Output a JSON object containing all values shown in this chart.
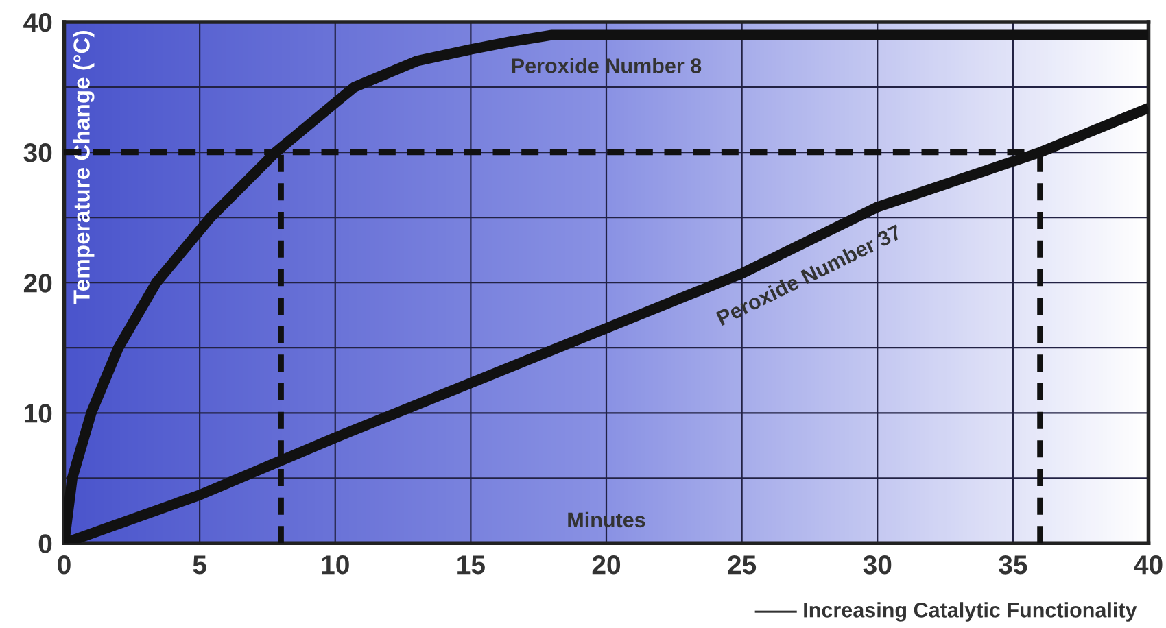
{
  "chart_data": {
    "type": "line",
    "xlabel": "Minutes",
    "ylabel": "Temperature Change (°C)",
    "annotations": [
      "—— Increasing Catalytic Functionality"
    ],
    "series": [
      {
        "name": "Peroxide Number 8",
        "color": "#111111",
        "x": [
          0,
          0.3,
          1,
          2,
          3.4,
          5.4,
          7.8,
          10.7,
          13,
          15,
          16.5,
          18,
          20,
          25,
          30,
          35,
          40
        ],
        "values": [
          0,
          5,
          10,
          15,
          20,
          25,
          30,
          35,
          37,
          37.9,
          38.5,
          39,
          39,
          39,
          39,
          39,
          39
        ]
      },
      {
        "name": "Peroxide Number 37",
        "color": "#111111",
        "x": [
          0,
          5,
          10,
          15,
          20,
          25,
          30,
          36,
          40
        ],
        "values": [
          0,
          3.7,
          8.1,
          12.3,
          16.5,
          20.7,
          25.8,
          30,
          33.4
        ]
      }
    ],
    "ref_lines": [
      {
        "axis": "y",
        "value": 30,
        "label": null,
        "color": "#111111",
        "line_style": "dashed"
      },
      {
        "axis": "x",
        "value": 8,
        "label": null,
        "color": "#111111",
        "line_style": "dashed"
      },
      {
        "axis": "x",
        "value": 36,
        "label": null,
        "color": "#111111",
        "line_style": "dashed"
      }
    ],
    "xlim": [
      0,
      40
    ],
    "ylim": [
      0,
      40
    ],
    "xticks": [
      0,
      5,
      10,
      15,
      20,
      25,
      30,
      35,
      40
    ],
    "yticks": [
      0,
      {
        "value": 5,
        "label": null
      },
      10,
      {
        "value": 15,
        "label": null
      },
      20,
      {
        "value": 25,
        "label": null
      },
      30,
      {
        "value": 35,
        "label": null
      },
      40
    ],
    "grid": true,
    "legend": false,
    "marker": "none",
    "line_style": "solid"
  }
}
